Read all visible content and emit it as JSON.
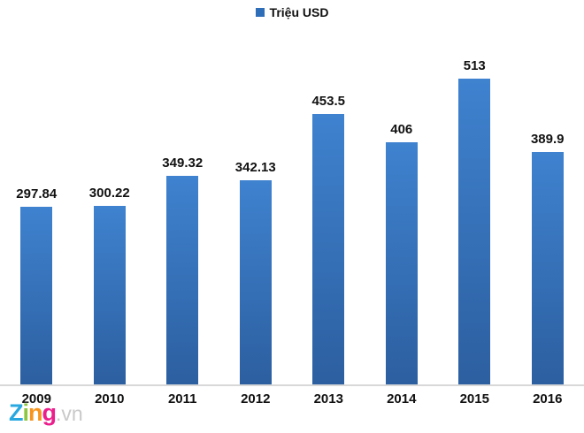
{
  "chart_data": {
    "type": "bar",
    "categories": [
      "2009",
      "2010",
      "2011",
      "2012",
      "2013",
      "2014",
      "2015",
      "2016"
    ],
    "values": [
      297.84,
      300.22,
      349.32,
      342.13,
      453.5,
      406,
      513,
      389.9
    ],
    "value_labels": [
      "297.84",
      "300.22",
      "349.32",
      "342.13",
      "453.5",
      "406",
      "513",
      "389.9"
    ],
    "title": "",
    "xlabel": "",
    "ylabel": "",
    "legend": "Triệu USD",
    "legend_position": "top-center",
    "ylim": [
      0,
      550
    ],
    "grid": false,
    "bar_color_top": "#3f82cf",
    "bar_color_bottom": "#2c5fa0",
    "legend_marker_color": "#2e6db8",
    "axis_line_color": "#d8d8d8",
    "label_color": "#111111"
  },
  "watermark": {
    "letters": [
      {
        "char": "Z",
        "color": "#29a8e0"
      },
      {
        "char": "i",
        "color": "#8dc63f"
      },
      {
        "char": "n",
        "color": "#f7941d"
      },
      {
        "char": "g",
        "color": "#ec1e8c"
      }
    ],
    "suffix": ".vn",
    "suffix_color": "#c9c9c9"
  }
}
